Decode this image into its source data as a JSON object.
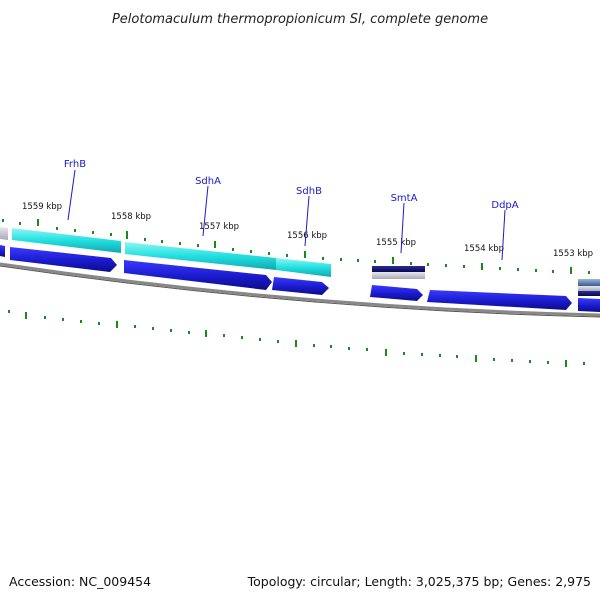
{
  "title": "Pelotomaculum thermopropionicum SI, complete genome",
  "footer": {
    "accession": "Accession: NC_009454",
    "summary": "Topology: circular; Length: 3,025,375 bp; Genes: 2,975"
  },
  "kbp_labels": [
    {
      "text": "1559 kbp"
    },
    {
      "text": "1558 kbp"
    },
    {
      "text": "1557 kbp"
    },
    {
      "text": "1556 kbp"
    },
    {
      "text": "1555 kbp"
    },
    {
      "text": "1554 kbp"
    },
    {
      "text": "1553 kbp"
    }
  ],
  "gene_labels": [
    {
      "text": "FrhB"
    },
    {
      "text": "SdhA"
    },
    {
      "text": "SdhB"
    },
    {
      "text": "SmtA"
    },
    {
      "text": "DdpA"
    }
  ],
  "colors": {
    "feature_blue": "#1a1acc",
    "feature_cyan": "#22d8d8",
    "feature_navy": "#10106a",
    "feature_grey": "#b0b0c0",
    "tick_green": "#1a8a1a",
    "backbone_grey": "#888888"
  }
}
